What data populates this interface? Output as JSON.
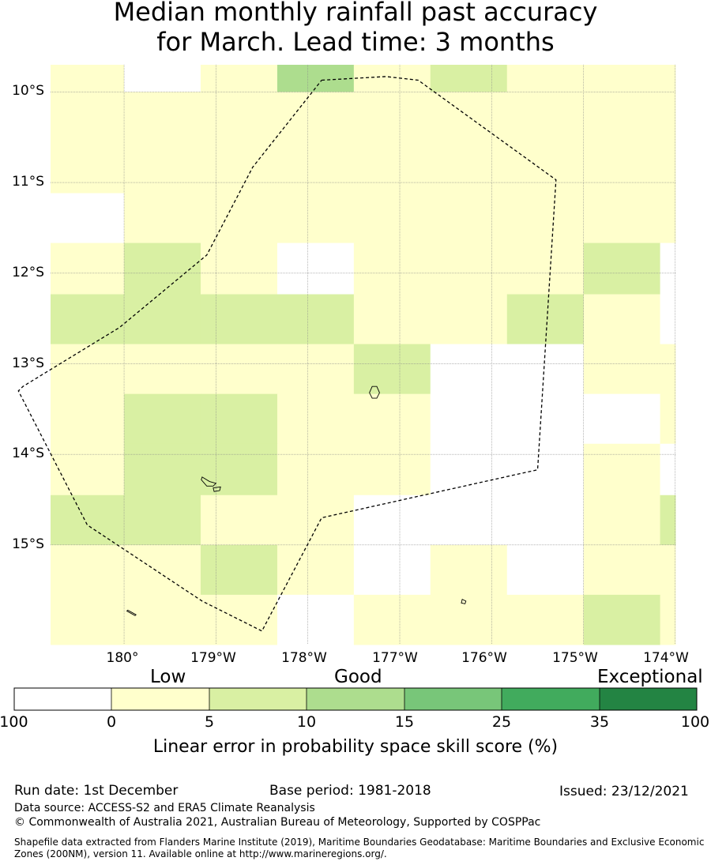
{
  "title": {
    "line1": "Median monthly rainfall past accuracy",
    "line2": "for March. Lead time: 3 months"
  },
  "map": {
    "lat_labels": [
      "10°S",
      "11°S",
      "12°S",
      "13°S",
      "14°S",
      "15°S"
    ],
    "lon_labels": [
      "180°",
      "179°W",
      "178°W",
      "177°W",
      "176°W",
      "175°W",
      "174°W"
    ],
    "lon_range": [
      179.2,
      186.0
    ],
    "lat_range": [
      -16.1,
      -9.7
    ],
    "cell_lon_edges": [
      179.2,
      180.0,
      180.833,
      181.667,
      182.5,
      183.333,
      184.167,
      185.0,
      185.833,
      186.0
    ],
    "cell_lat_edges": [
      -9.7,
      -10.0,
      -10.567,
      -11.117,
      -11.667,
      -12.233,
      -12.783,
      -13.333,
      -13.883,
      -14.45,
      -15.0,
      -15.55,
      -16.1
    ],
    "skill_categories": [
      "1 0 1 3 1 2 1 1 1",
      "1 1 1 1 1 1 1 1 1",
      "1 1 1 1 1 1 1 1 1",
      "0 1 1 1 1 1 1 1 1",
      "1 2 1 0 1 1 1 2 0",
      "2 2 2 2 1 1 2 1 0",
      "1 1 1 1 2 0 0 1 1",
      "1 2 2 1 1 0 0 0 1",
      "1 2 2 1 1 0 0 1 0",
      "2 2 1 1 0 0 0 1 2",
      "1 1 2 1 0 1 0 1 1",
      "1 1 1 0 1 1 1 2 1"
    ],
    "eez_boundary": [
      [
        182.15,
        -9.87
      ],
      [
        182.85,
        -9.83
      ],
      [
        183.2,
        -9.87
      ],
      [
        184.7,
        -10.97
      ],
      [
        184.5,
        -14.17
      ],
      [
        182.15,
        -14.7
      ],
      [
        181.5,
        -15.95
      ],
      [
        180.85,
        -15.62
      ],
      [
        179.6,
        -14.78
      ],
      [
        178.85,
        -13.3
      ],
      [
        178.9,
        -13.25
      ],
      [
        179.95,
        -12.6
      ],
      [
        180.9,
        -11.8
      ],
      [
        181.4,
        -10.83
      ],
      [
        182.15,
        -9.87
      ]
    ],
    "islands": [
      [
        [
          182.7,
          -13.25
        ],
        [
          182.75,
          -13.25
        ],
        [
          182.78,
          -13.32
        ],
        [
          182.75,
          -13.38
        ],
        [
          182.7,
          -13.38
        ],
        [
          182.67,
          -13.32
        ]
      ],
      [
        [
          180.85,
          -14.25
        ],
        [
          180.93,
          -14.3
        ],
        [
          181.0,
          -14.32
        ],
        [
          180.97,
          -14.35
        ],
        [
          180.9,
          -14.35
        ],
        [
          180.84,
          -14.28
        ]
      ],
      [
        [
          180.97,
          -14.37
        ],
        [
          181.05,
          -14.36
        ],
        [
          181.04,
          -14.4
        ],
        [
          180.98,
          -14.41
        ]
      ],
      [
        [
          183.68,
          -15.6
        ],
        [
          183.72,
          -15.62
        ],
        [
          183.71,
          -15.65
        ],
        [
          183.67,
          -15.64
        ]
      ],
      [
        [
          180.04,
          -15.72
        ],
        [
          180.13,
          -15.77
        ],
        [
          180.12,
          -15.78
        ],
        [
          180.03,
          -15.73
        ]
      ]
    ]
  },
  "colorbar": {
    "quality_labels": [
      "Low",
      "Good",
      "Exceptional"
    ],
    "boundaries": [
      "-100",
      "0",
      "5",
      "10",
      "15",
      "25",
      "35",
      "100"
    ],
    "colors": [
      "#ffffff",
      "#ffffcc",
      "#d9f0a3",
      "#addd8e",
      "#78c679",
      "#41ab5d",
      "#238443"
    ],
    "label": "Linear error in probability space skill score (%)"
  },
  "footer": {
    "run_date": "Run date: 1st December",
    "base_period": "Base period: 1981-2018",
    "issued": "Issued: 23/12/2021",
    "data_source": "Data source: ACCESS-S2 and ERA5 Climate Reanalysis",
    "copyright": "© Commonwealth of Australia 2021, Australian Bureau of Meteorology, Supported by COSPPac",
    "shapefile_line1": "Shapefile data extracted from Flanders Marine Institute (2019), Maritime Boundaries Geodatabase: Maritime Boundaries and Exclusive Economic",
    "shapefile_line2": "Zones (200NM), version 11. Available online at http://www.marineregions.org/."
  }
}
